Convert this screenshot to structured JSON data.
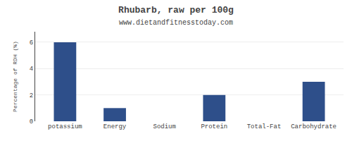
{
  "chart_data": {
    "type": "bar",
    "title": "Rhubarb, raw per 100g",
    "subtitle": "www.dietandfitnesstoday.com",
    "categories": [
      "potassium",
      "Energy",
      "Sodium",
      "Protein",
      "Total-Fat",
      "Carbohydrate"
    ],
    "values": [
      6.0,
      1.0,
      0.0,
      2.0,
      0.0,
      3.0
    ],
    "color": "#2e4f8a",
    "ylabel": "Percentage of RDH (%)",
    "ylim": [
      0,
      6.8
    ],
    "yticks": [
      0,
      2,
      4,
      6
    ],
    "grid": true
  }
}
